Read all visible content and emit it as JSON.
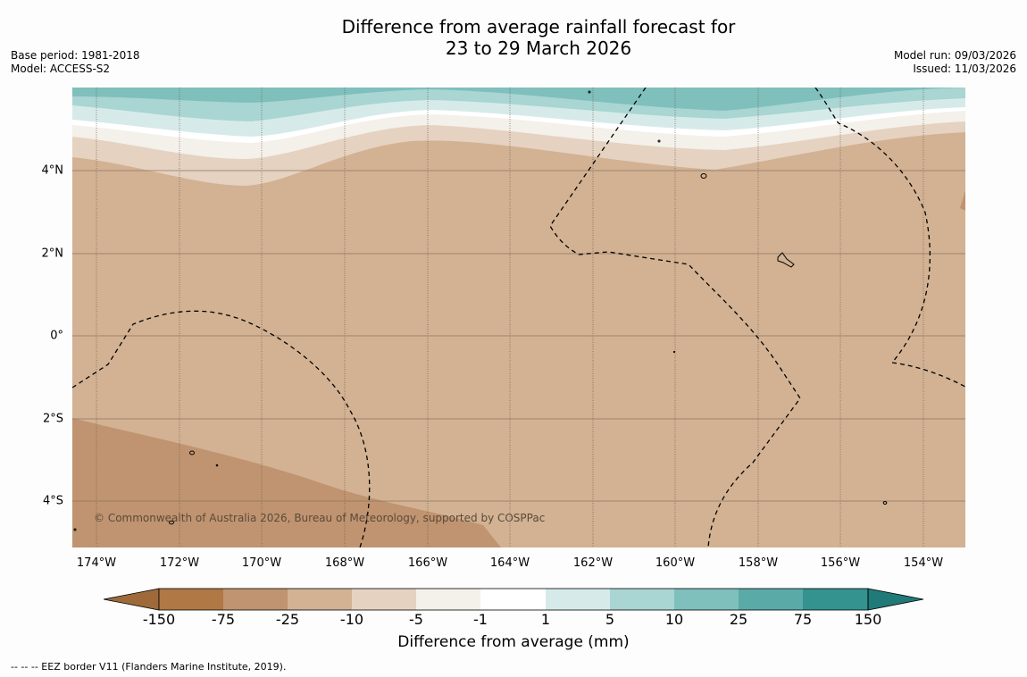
{
  "header": {
    "title_line1": "Difference from average rainfall forecast for",
    "title_line2": "23 to 29 March 2026",
    "base_period": "Base period: 1981-2018",
    "model": "Model: ACCESS-S2",
    "model_run": "Model run: 09/03/2026",
    "issued": "Issued: 11/03/2026"
  },
  "map": {
    "latitude_labels": [
      "4°N",
      "2°N",
      "0°",
      "2°S",
      "4°S"
    ],
    "longitude_labels": [
      "174°W",
      "172°W",
      "170°W",
      "168°W",
      "166°W",
      "164°W",
      "162°W",
      "160°W",
      "158°W",
      "156°W",
      "154°W"
    ],
    "copyright": "© Commonwealth of Australia 2026, Bureau of Meteorology, supported by COSPPac"
  },
  "colorbar": {
    "label": "Difference from average (mm)",
    "ticks": [
      "-150",
      "-75",
      "-25",
      "-10",
      "-5",
      "-1",
      "1",
      "5",
      "10",
      "25",
      "75",
      "150"
    ],
    "colors": [
      "#9e6a3a",
      "#b07844",
      "#c09470",
      "#d2b293",
      "#e5d2c1",
      "#f4f0ea",
      "#ffffff",
      "#d6ebe9",
      "#a9d5d3",
      "#7fbfbc",
      "#5aaba8",
      "#34928f",
      "#207a78"
    ]
  },
  "footnote": "--  --  -- EEZ border V11 (Flanders Marine Institute, 2019)."
}
